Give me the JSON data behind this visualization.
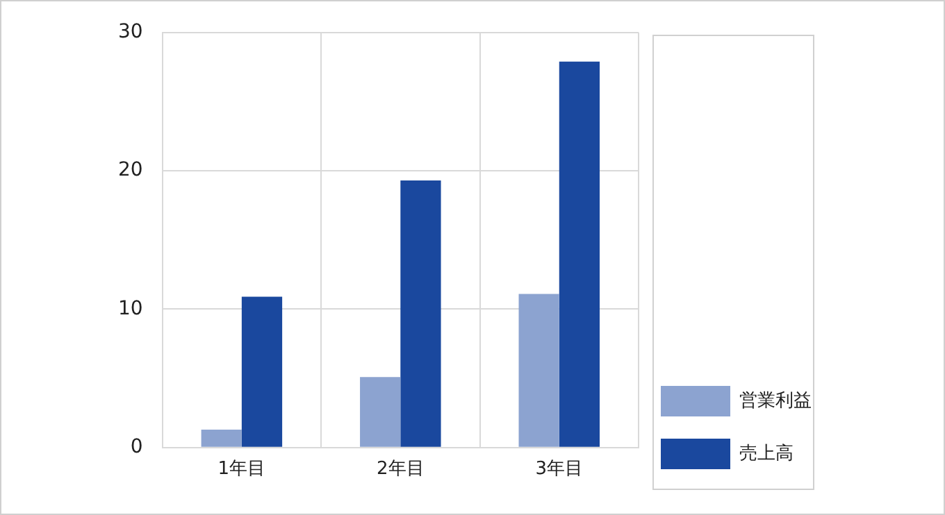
{
  "chart_data": {
    "type": "bar",
    "categories": [
      "1年目",
      "2年目",
      "3年目"
    ],
    "series": [
      {
        "name": "営業利益",
        "color": "#8ca3d0",
        "values": [
          1.3,
          5.1,
          11.1
        ]
      },
      {
        "name": "売上高",
        "color": "#1a489e",
        "values": [
          10.9,
          19.3,
          27.9
        ]
      }
    ],
    "ylim": [
      0,
      30
    ],
    "yticks": [
      0,
      10,
      20,
      30
    ],
    "grid": true,
    "legend": "bottom right"
  }
}
